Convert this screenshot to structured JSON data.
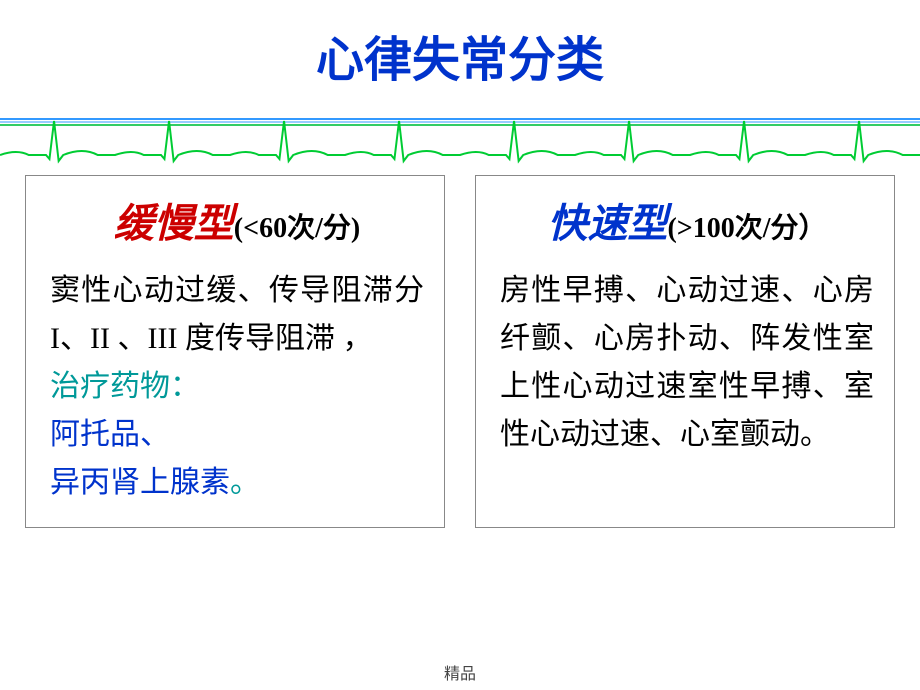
{
  "title": {
    "text": "心律失常分类",
    "color": "#0033cc"
  },
  "divider": {
    "line_colors": [
      "#3399ff",
      "#3399ff",
      "#33cc66"
    ],
    "ecg_color": "#00cc33",
    "ecg_stroke_width": 2,
    "ecg_cycles": 8
  },
  "left_box": {
    "heading": "缓慢型",
    "heading_color": "#cc0000",
    "suffix": "(<60次/分)",
    "body_text": "窦性心动过缓、传导阻滞分 I、II 、III  度传导阻滞 ，",
    "body_color": "#000000",
    "treatment_label": "治疗药物：",
    "treatment_color": "#009999",
    "drugs_text": "阿托品、异丙肾上腺素",
    "drugs_color": "#0033cc",
    "period": "。",
    "period_color": "#009999"
  },
  "right_box": {
    "heading": "快速型",
    "heading_color": "#0033cc",
    "suffix": "(>100次/分）",
    "body_text": "房性早搏、心动过速、心房纤颤、心房扑动、阵发性室上性心动过速室性早搏、室性心动过速、心室颤动。",
    "body_color": "#000000"
  },
  "footer": "精品",
  "styling": {
    "box_border_color": "#888888",
    "background": "#ffffff",
    "title_fontsize": 48,
    "box_heading_fontsize": 40,
    "body_fontsize": 30
  }
}
